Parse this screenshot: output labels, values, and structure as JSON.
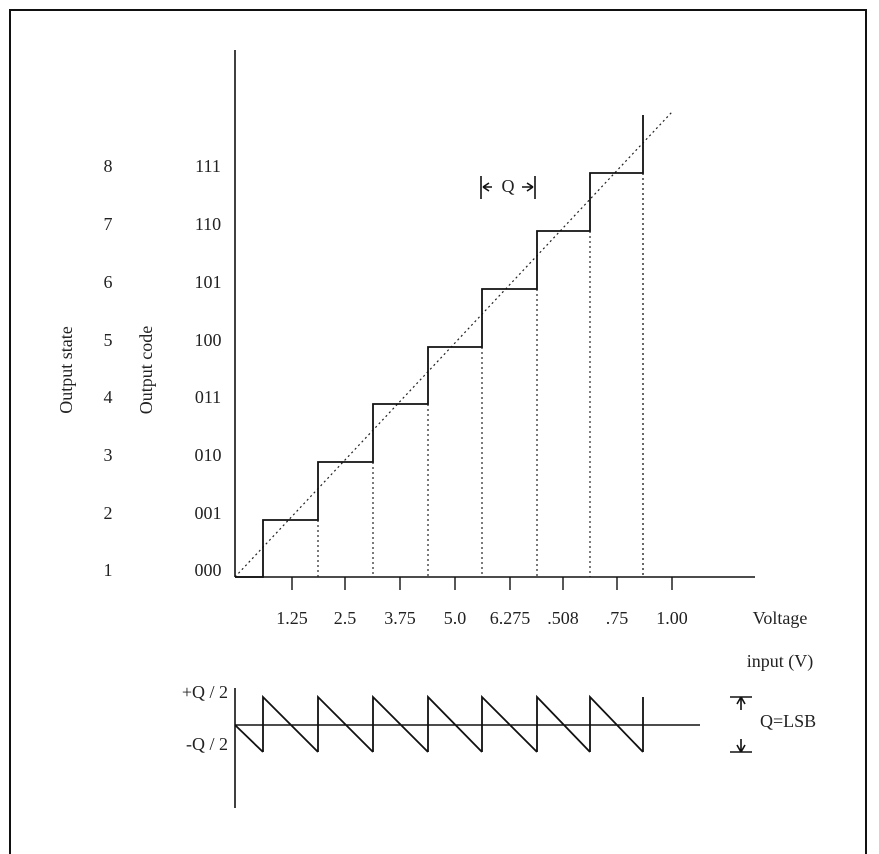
{
  "output_state_label": "Output state",
  "output_code_label": "Output code",
  "output_states": [
    "8",
    "7",
    "6",
    "5",
    "4",
    "3",
    "2",
    "1"
  ],
  "output_codes": [
    "111",
    "110",
    "101",
    "100",
    "011",
    "010",
    "001",
    "000"
  ],
  "voltage_labels": [
    "1.25",
    "2.5",
    "3.75",
    "5.0",
    "6.275",
    ".508",
    ".75",
    "1.00"
  ],
  "x_axis_label": [
    "Voltage",
    "input (V)"
  ],
  "q_marker": "Q",
  "error_labels": {
    "plus": "+Q / 2",
    "minus": "-Q / 2",
    "lsb": "Q=LSB"
  }
}
